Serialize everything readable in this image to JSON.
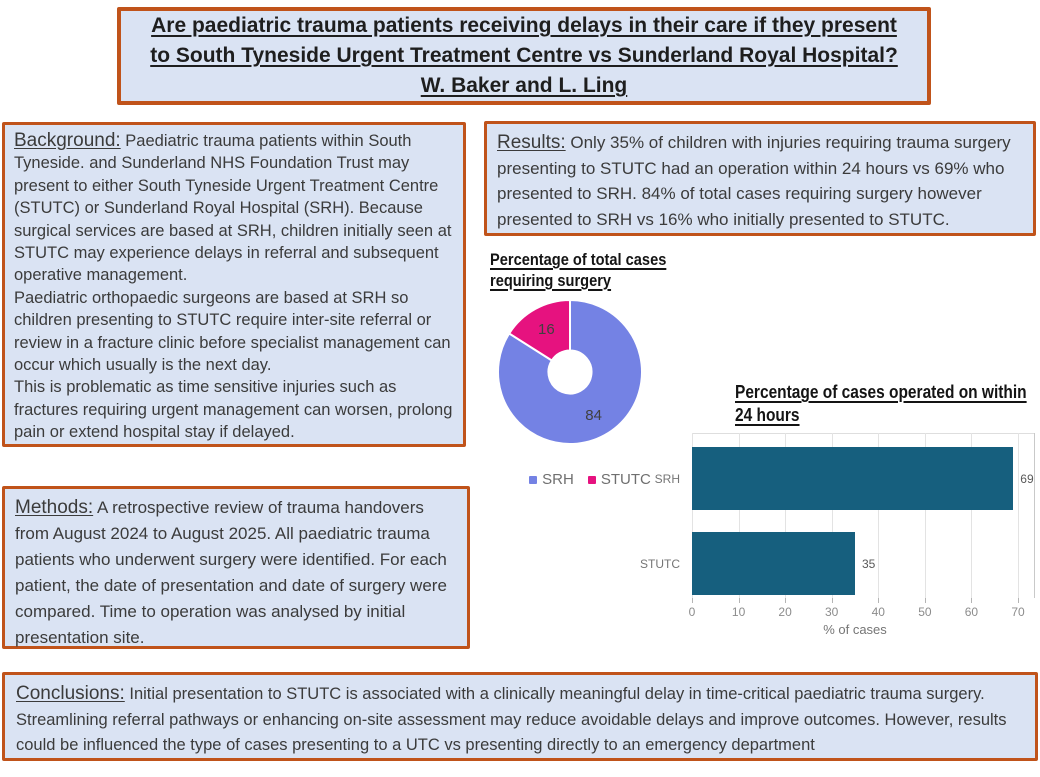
{
  "title_box": {
    "lines": [
      "Are paediatric trauma patients receiving delays in their care if they present",
      "to South Tyneside Urgent Treatment Centre vs Sunderland Royal Hospital?",
      "W. Baker and L. Ling"
    ]
  },
  "background_box": {
    "label": "Background:",
    "paragraphs": [
      "Paediatric trauma patients within South Tyneside. and Sunderland NHS Foundation Trust may present to either South Tyneside Urgent Treatment Centre (STUTC) or Sunderland Royal Hospital (SRH). Because surgical services are based at SRH, children initially seen at STUTC may experience delays in referral and subsequent operative management.",
      "Paediatric orthopaedic surgeons are based at SRH so children presenting to STUTC require inter-site referral or review in a fracture clinic before specialist management can occur which usually is the next day.",
      "This is problematic as time sensitive injuries such as fractures requiring urgent management can worsen, prolong pain or extend hospital stay if delayed."
    ]
  },
  "results_box": {
    "label": "Results:",
    "text": "Only 35% of children with injuries requiring trauma surgery presenting to STUTC had an operation within 24 hours vs 69% who presented to SRH. 84% of total cases requiring surgery however presented to SRH vs 16% who initially presented to STUTC."
  },
  "methods_box": {
    "label": "Methods:",
    "text": "A retrospective review of trauma handovers from August 2024 to August 2025. All paediatric trauma patients who underwent surgery were identified. For each patient, the date of presentation and date of surgery were compared. Time to operation was analysed by initial presentation site."
  },
  "conclusions_box": {
    "label": "Conclusions:",
    "text": "Initial presentation to STUTC is associated with a clinically meaningful delay in time-critical paediatric trauma surgery. Streamlining referral pathways or enhancing on-site assessment may reduce avoidable delays and improve outcomes. However, results could be influenced the type of cases presenting to a UTC vs presenting directly to an emergency department"
  },
  "colors": {
    "box_border": "#c0531a",
    "box_fill": "#dae3f3",
    "srh_blue": "#7482e4",
    "stutc_pink": "#e6127f",
    "bar_teal": "#165f7e"
  },
  "chart_data": [
    {
      "type": "pie",
      "donut": true,
      "title": "Percentage of total cases requiring surgery",
      "title_lines": [
        "Percentage of total cases",
        "requiring surgery"
      ],
      "labels": [
        "SRH",
        "STUTC"
      ],
      "values": [
        84,
        16
      ],
      "colors": [
        "#7482e4",
        "#e6127f"
      ],
      "legend_position": "bottom"
    },
    {
      "type": "bar",
      "orientation": "horizontal",
      "title": "Percentage of cases operated on within 24 hours",
      "title_lines": [
        "Percentage of cases operated on within",
        "24 hours"
      ],
      "categories": [
        "SRH",
        "STUTC"
      ],
      "values": [
        69,
        35
      ],
      "bar_color": "#165f7e",
      "xlabel": "% of cases",
      "xticks": [
        0,
        10,
        20,
        30,
        40,
        50,
        60,
        70
      ],
      "xlim": [
        0,
        73.5
      ],
      "grid": true
    }
  ]
}
